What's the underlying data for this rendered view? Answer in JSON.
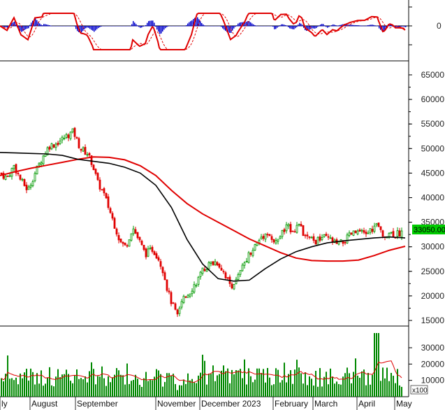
{
  "chart_data": [
    {
      "type": "line",
      "panel": "macd-oscillator",
      "y_ticks": [
        "0"
      ],
      "series": [],
      "histogram_color": "#0000cc",
      "line_colors": [
        "#e00000",
        "#e00000"
      ],
      "grid": false
    },
    {
      "type": "candlestick",
      "panel": "price",
      "y_ticks": [
        "65000",
        "60000",
        "55000",
        "50000",
        "45000",
        "40000",
        "35000",
        "30000",
        "25000",
        "20000",
        "15000"
      ],
      "ylim": [
        14000,
        67000
      ],
      "last_value_label": "33050.00",
      "moving_averages": [
        {
          "color": "#000000",
          "values": [
            49200,
            49100,
            49000,
            48900,
            48600,
            47800,
            47400,
            47000,
            46200,
            45000,
            42500,
            38000,
            31500,
            26500,
            23500,
            23000,
            23200,
            25500,
            27500,
            29000,
            30000,
            30800,
            31200,
            31500,
            31800,
            32000,
            31800
          ]
        },
        {
          "color": "#e00000",
          "values": [
            44500,
            45300,
            46000,
            46600,
            47200,
            47800,
            48300,
            48200,
            47700,
            46500,
            44500,
            41500,
            38800,
            36700,
            35000,
            33300,
            31600,
            30200,
            28800,
            27700,
            27200,
            27100,
            27100,
            27300,
            28200,
            29300,
            30100
          ]
        }
      ],
      "candle_up_color": "#009900",
      "candle_down_color": "#e00000",
      "grid": false
    },
    {
      "type": "bar",
      "panel": "volume",
      "y_ticks": [
        "30000",
        "20000",
        "10000"
      ],
      "ylim": [
        0,
        40000
      ],
      "unit_label": "x100",
      "bar_color": "#008800",
      "ma_color": "#e00000",
      "grid": false
    }
  ],
  "x_axis": {
    "labels": [
      "ly",
      "August",
      "September",
      "November",
      "December 2023",
      "February",
      "March",
      "April",
      "May"
    ]
  },
  "colors": {
    "up": "#009900",
    "down": "#e00000",
    "macd_hist": "#0000cc",
    "volume": "#008800"
  }
}
